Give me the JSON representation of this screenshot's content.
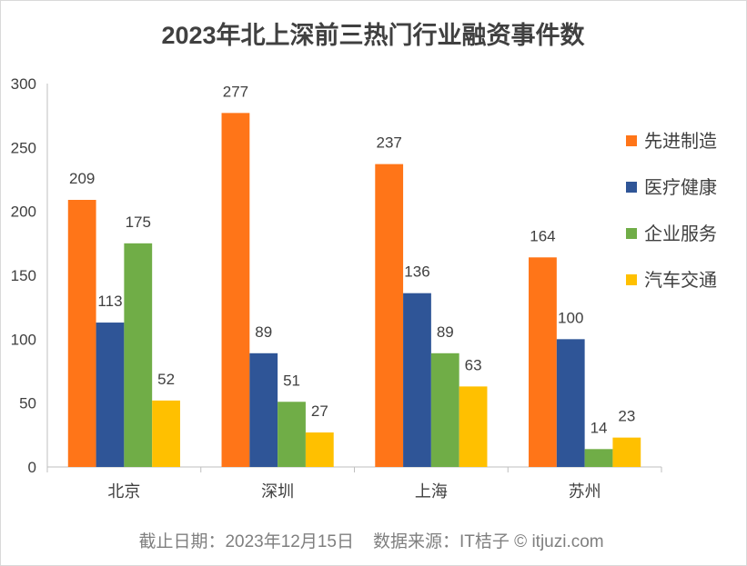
{
  "chart_data": {
    "type": "bar",
    "title": "2023年北上深前三热门行业融资事件数",
    "categories": [
      "北京",
      "深圳",
      "上海",
      "苏州"
    ],
    "series": [
      {
        "name": "先进制造",
        "values": [
          209,
          277,
          237,
          164
        ],
        "color": "#FF7518"
      },
      {
        "name": "医疗健康",
        "values": [
          113,
          89,
          136,
          100
        ],
        "color": "#2F5597"
      },
      {
        "name": "企业服务",
        "values": [
          175,
          51,
          89,
          14
        ],
        "color": "#70AD47"
      },
      {
        "name": "汽车交通",
        "values": [
          52,
          27,
          63,
          23
        ],
        "color": "#FFC000"
      }
    ],
    "xlabel": "",
    "ylabel": "",
    "ylim": [
      0,
      300
    ],
    "yticks": [
      0,
      50,
      100,
      150,
      200,
      250,
      300
    ],
    "grid": false,
    "legend_position": "right"
  },
  "footer": {
    "date": "截止日期：2023年12月15日",
    "source": "数据来源：IT桔子 © itjuzi.com"
  }
}
